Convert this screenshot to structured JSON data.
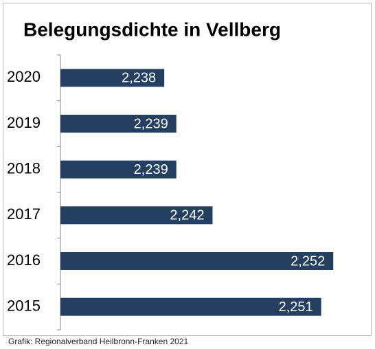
{
  "chart_data": {
    "type": "bar",
    "orientation": "horizontal",
    "title": "Belegungsdichte in Vellberg",
    "categories": [
      "2020",
      "2019",
      "2018",
      "2017",
      "2016",
      "2015"
    ],
    "values": [
      2.238,
      2.239,
      2.239,
      2.242,
      2.252,
      2.251
    ],
    "value_labels": [
      "2,238",
      "2,239",
      "2,239",
      "2,242",
      "2,252",
      "2,251"
    ],
    "color": "#243f60",
    "xlim": [
      2.2294,
      2.2554
    ],
    "source": "Grafik: Regionalverband Heilbronn-Franken 2021"
  }
}
